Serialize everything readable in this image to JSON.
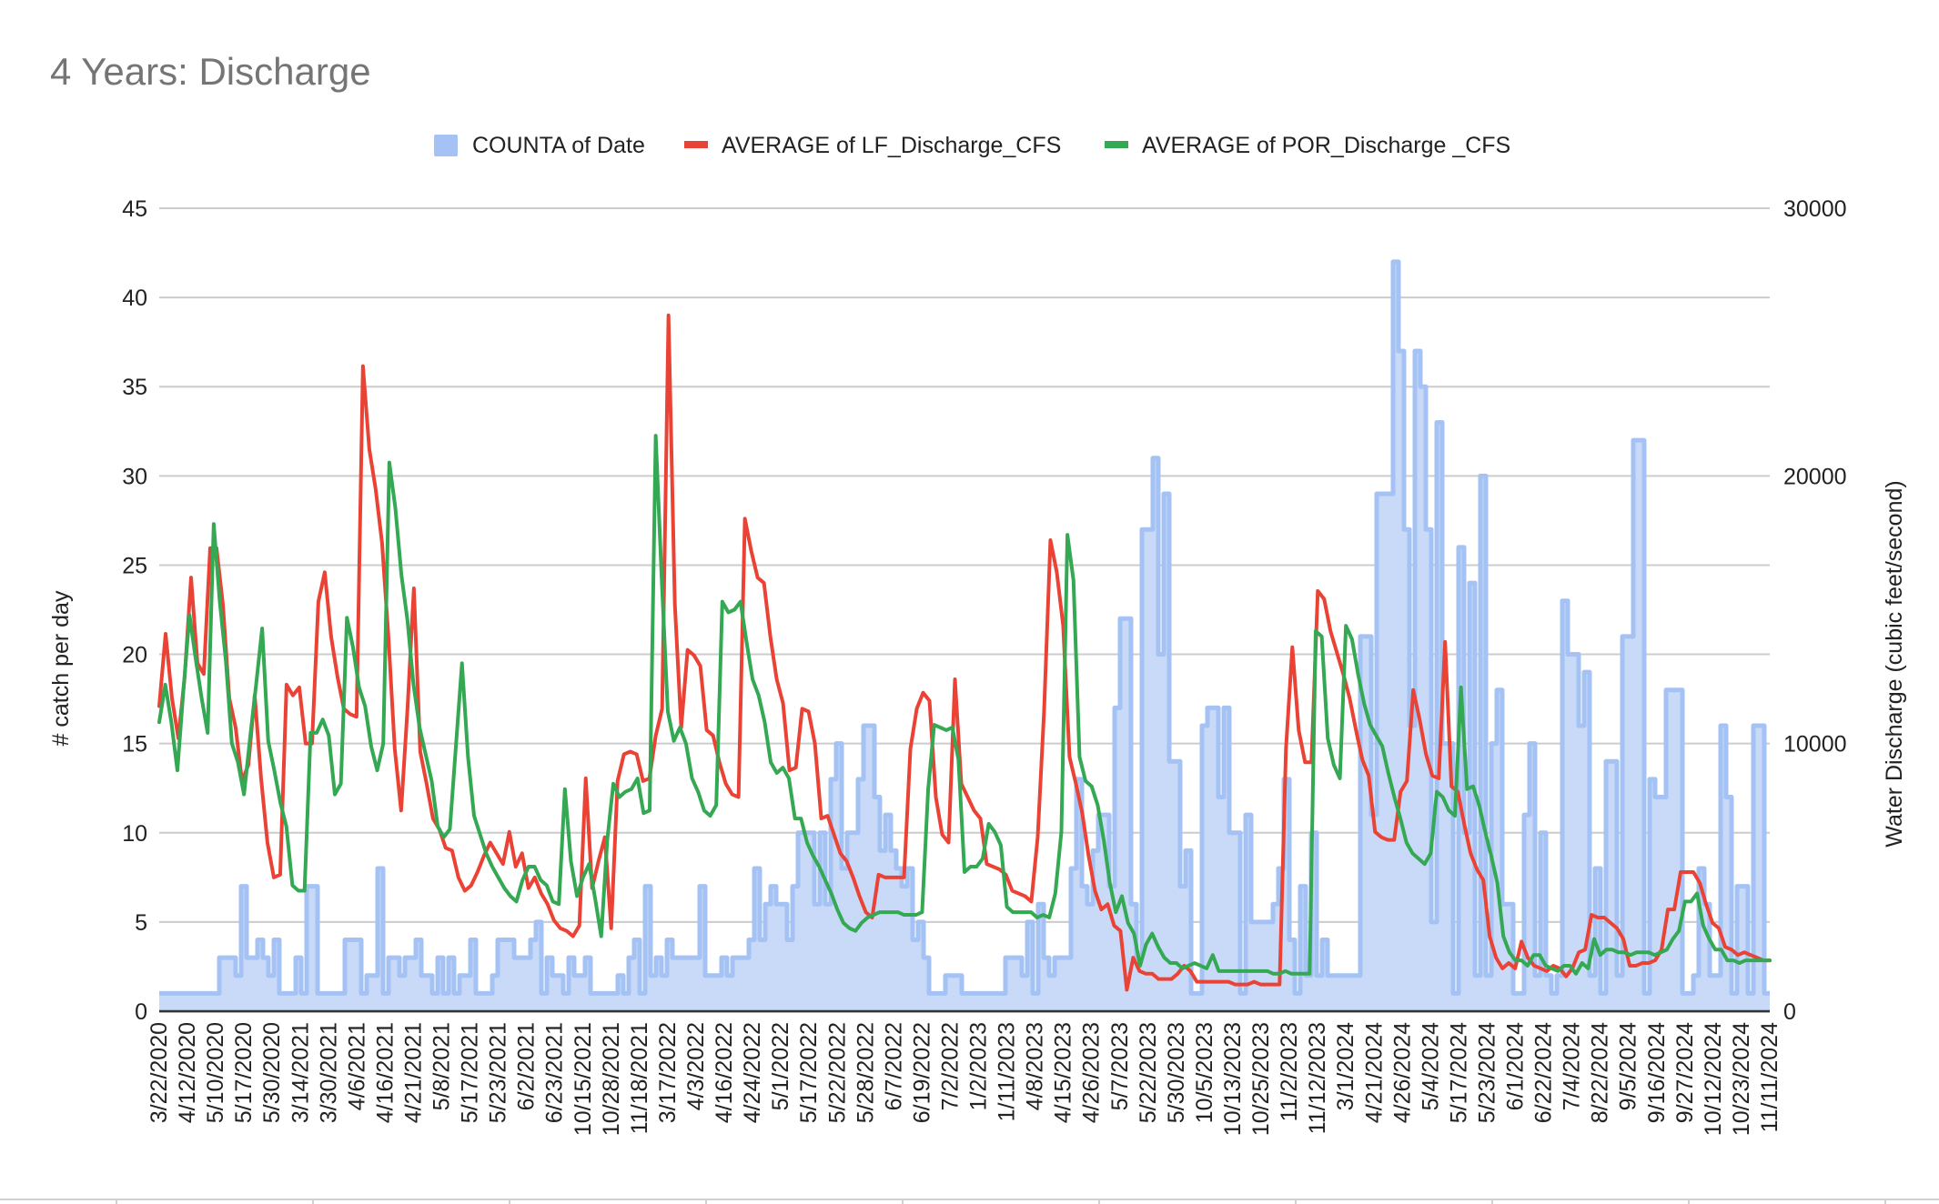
{
  "chart_data": {
    "type": "area",
    "title": "4 Years: Discharge",
    "ylabel_left": "# catch per day",
    "ylabel_right": "Water Discharge (cubic feet/second)",
    "ylim_left": [
      0,
      45
    ],
    "ylim_right": [
      0,
      30000
    ],
    "yticks_left": [
      "0",
      "5",
      "10",
      "15",
      "20",
      "25",
      "30",
      "35",
      "40",
      "45"
    ],
    "yticks_right": [
      "0",
      "10000",
      "20000",
      "30000"
    ],
    "grid": true,
    "legend_position": "top",
    "x_tick_labels": [
      "3/22/2020",
      "4/12/2020",
      "5/10/2020",
      "5/17/2020",
      "5/30/2020",
      "3/14/2021",
      "3/30/2021",
      "4/6/2021",
      "4/16/2021",
      "4/21/2021",
      "5/8/2021",
      "5/17/2021",
      "5/23/2021",
      "6/2/2021",
      "6/23/2021",
      "10/15/2021",
      "10/28/2021",
      "11/18/2021",
      "3/17/2022",
      "4/3/2022",
      "4/16/2022",
      "4/24/2022",
      "5/1/2022",
      "5/17/2022",
      "5/22/2022",
      "5/28/2022",
      "6/7/2022",
      "6/19/2022",
      "7/2/2022",
      "1/2/2023",
      "1/11/2023",
      "4/8/2023",
      "4/15/2023",
      "4/26/2023",
      "5/7/2023",
      "5/22/2023",
      "5/30/2023",
      "10/5/2023",
      "10/13/2023",
      "10/25/2023",
      "11/2/2023",
      "11/12/2023",
      "3/1/2024",
      "4/21/2024",
      "4/26/2024",
      "5/4/2024",
      "5/17/2024",
      "5/23/2024",
      "6/1/2024",
      "6/22/2024",
      "7/4/2024",
      "8/22/2024",
      "9/5/2024",
      "9/16/2024",
      "9/27/2024",
      "10/12/2024",
      "10/23/2024",
      "11/11/2024"
    ],
    "series": [
      {
        "name": "COUNTA of Date",
        "type": "stepped-area",
        "axis": "left",
        "color": "#a4c2f4",
        "fill_color": "#c9daf8",
        "values": [
          1,
          1,
          1,
          1,
          1,
          1,
          1,
          1,
          1,
          1,
          1,
          3,
          3,
          3,
          2,
          7,
          3,
          3,
          4,
          3,
          2,
          4,
          1,
          1,
          1,
          3,
          1,
          7,
          7,
          1,
          1,
          1,
          1,
          1,
          4,
          4,
          4,
          1,
          2,
          2,
          8,
          1,
          3,
          3,
          2,
          3,
          3,
          4,
          2,
          2,
          1,
          3,
          1,
          3,
          1,
          2,
          2,
          4,
          1,
          1,
          1,
          2,
          4,
          4,
          4,
          3,
          3,
          3,
          4,
          5,
          1,
          3,
          2,
          2,
          1,
          3,
          2,
          2,
          3,
          1,
          1,
          1,
          1,
          1,
          2,
          1,
          3,
          4,
          1,
          7,
          2,
          3,
          2,
          4,
          3,
          3,
          3,
          3,
          3,
          7,
          2,
          2,
          2,
          3,
          2,
          3,
          3,
          3,
          4,
          8,
          4,
          6,
          7,
          6,
          6,
          4,
          7,
          10,
          10,
          10,
          6,
          10,
          6,
          13,
          15,
          8,
          10,
          10,
          13,
          16,
          16,
          12,
          9,
          11,
          9,
          8,
          7,
          8,
          4,
          5,
          3,
          1,
          1,
          1,
          2,
          2,
          2,
          1,
          1,
          1,
          1,
          1,
          1,
          1,
          1,
          3,
          3,
          3,
          2,
          5,
          1,
          6,
          3,
          2,
          3,
          3,
          3,
          8,
          13,
          7,
          6,
          9,
          11,
          11,
          7,
          17,
          22,
          22,
          6,
          3,
          27,
          27,
          31,
          20,
          29,
          14,
          14,
          7,
          9,
          1,
          1,
          16,
          17,
          17,
          12,
          17,
          10,
          10,
          1,
          11,
          5,
          5,
          5,
          5,
          6,
          8,
          13,
          4,
          1,
          7,
          2,
          10,
          2,
          4,
          2,
          2,
          2,
          2,
          2,
          2,
          21,
          21,
          11,
          29,
          29,
          29,
          42,
          37,
          27,
          16,
          37,
          35,
          27,
          5,
          33,
          15,
          15,
          1,
          26,
          10,
          24,
          2,
          30,
          2,
          15,
          18,
          6,
          6,
          1,
          1,
          11,
          15,
          2,
          10,
          2,
          1,
          2,
          23,
          20,
          20,
          16,
          19,
          2,
          8,
          1,
          14,
          14,
          2,
          21,
          21,
          32,
          32,
          1,
          13,
          12,
          12,
          18,
          18,
          18,
          1,
          1,
          2,
          8,
          6,
          2,
          2,
          16,
          12,
          1,
          7,
          7,
          1,
          16,
          16,
          1
        ]
      },
      {
        "name": "AVERAGE of LF_Discharge_CFS",
        "type": "line",
        "axis": "right",
        "color": "#ea4335",
        "values": [
          11400,
          14100,
          11700,
          10200,
          12500,
          16200,
          13000,
          12600,
          17300,
          17300,
          15200,
          11700,
          10600,
          8600,
          9200,
          11800,
          8700,
          6300,
          5000,
          5100,
          12200,
          11800,
          12100,
          10000,
          10000,
          15300,
          16400,
          14000,
          12500,
          11300,
          11100,
          11000,
          24100,
          21000,
          19500,
          17500,
          14000,
          9800,
          7500,
          11300,
          15800,
          9700,
          8500,
          7200,
          6800,
          6100,
          6000,
          5000,
          4500,
          4700,
          5200,
          5800,
          6300,
          5900,
          5500,
          6700,
          5400,
          5900,
          4600,
          5000,
          4400,
          4000,
          3400,
          3100,
          3000,
          2800,
          3200,
          8700,
          4600,
          5600,
          6500,
          3100,
          8600,
          9600,
          9700,
          9600,
          8600,
          8700,
          10300,
          11300,
          26000,
          15200,
          10600,
          13500,
          13300,
          12900,
          10500,
          10300,
          9300,
          8500,
          8100,
          8000,
          18400,
          17200,
          16200,
          16000,
          14000,
          12400,
          11500,
          9000,
          9100,
          11300,
          11200,
          10000,
          7200,
          7300,
          6600,
          5900,
          5600,
          5000,
          4300,
          3700,
          3500,
          5100,
          5000,
          5000,
          5000,
          5000,
          9800,
          11300,
          11900,
          11600,
          8000,
          6600,
          6300,
          12400,
          8500,
          8000,
          7500,
          7200,
          5500,
          5400,
          5300,
          5100,
          4500,
          4400,
          4300,
          4100,
          6500,
          11200,
          17600,
          16400,
          14400,
          9500,
          8500,
          7400,
          5800,
          4500,
          3800,
          4000,
          3200,
          3000,
          800,
          2000,
          1500,
          1400,
          1400,
          1200,
          1200,
          1200,
          1400,
          1700,
          1500,
          1100,
          1100,
          1100,
          1100,
          1100,
          1100,
          1000,
          1000,
          1000,
          1100,
          1000,
          1000,
          1000,
          1000,
          9800,
          13600,
          10500,
          9300,
          9300,
          15700,
          15400,
          14200,
          13400,
          12600,
          11700,
          10500,
          9400,
          8800,
          6700,
          6500,
          6400,
          6400,
          8200,
          8600,
          12000,
          10900,
          9600,
          8800,
          8700,
          13800,
          8400,
          8200,
          7000,
          5900,
          5300,
          4900,
          2800,
          2000,
          1600,
          1800,
          1600,
          2600,
          2000,
          1700,
          1600,
          1500,
          1700,
          1600,
          1300,
          1600,
          2200,
          2300,
          3600,
          3500,
          3500,
          3300,
          3100,
          2700,
          1700,
          1700,
          1800,
          1800,
          1900,
          2300,
          3800,
          3800,
          5200,
          5200,
          5200,
          4800,
          4000,
          3300,
          3100,
          2400,
          2300,
          2100,
          2200,
          2100,
          2000,
          1900,
          1900
        ]
      },
      {
        "name": "AVERAGE of POR_Discharge _CFS",
        "type": "line",
        "axis": "right",
        "color": "#34a853",
        "values": [
          10800,
          12200,
          10800,
          9000,
          12000,
          14800,
          13200,
          11700,
          10400,
          18200,
          15300,
          13100,
          10000,
          9300,
          8100,
          10200,
          12200,
          14300,
          10100,
          9000,
          7800,
          6900,
          4700,
          4500,
          4500,
          10400,
          10400,
          10900,
          10300,
          8100,
          8500,
          14700,
          13600,
          12100,
          11400,
          9900,
          9000,
          10000,
          20500,
          18800,
          16300,
          14600,
          12200,
          10600,
          9600,
          8600,
          6900,
          6500,
          6800,
          9900,
          13000,
          9500,
          7300,
          6600,
          5900,
          5400,
          5000,
          4600,
          4300,
          4100,
          4900,
          5400,
          5400,
          4900,
          4700,
          4100,
          4000,
          8300,
          5600,
          4300,
          5000,
          5500,
          4200,
          2800,
          6400,
          8500,
          8000,
          8200,
          8300,
          8700,
          7400,
          7500,
          21500,
          16100,
          11200,
          10100,
          10600,
          10000,
          8700,
          8200,
          7500,
          7300,
          7700,
          15300,
          14900,
          15000,
          15300,
          13800,
          12400,
          11800,
          10800,
          9300,
          8900,
          9100,
          8700,
          7200,
          7200,
          6300,
          5800,
          5400,
          4900,
          4400,
          3800,
          3300,
          3100,
          3000,
          3300,
          3500,
          3600,
          3700,
          3700,
          3700,
          3700,
          3600,
          3600,
          3600,
          3700,
          8300,
          10700,
          10600,
          10500,
          10600,
          9400,
          5200,
          5400,
          5400,
          5700,
          7000,
          6700,
          6200,
          3900,
          3700,
          3700,
          3700,
          3700,
          3500,
          3600,
          3500,
          4400,
          6700,
          17800,
          16100,
          9500,
          8600,
          8400,
          7700,
          6400,
          4800,
          3700,
          4300,
          3300,
          2900,
          1700,
          2500,
          2900,
          2400,
          2000,
          1800,
          1800,
          1600,
          1700,
          1800,
          1700,
          1600,
          2100,
          1500,
          1500,
          1500,
          1500,
          1500,
          1500,
          1500,
          1500,
          1500,
          1400,
          1400,
          1500,
          1400,
          1400,
          1400,
          1400,
          14200,
          14000,
          10200,
          9200,
          8700,
          14400,
          13900,
          12600,
          11500,
          10700,
          10300,
          9900,
          8900,
          8000,
          7200,
          6300,
          5900,
          5700,
          5500,
          5900,
          8200,
          8000,
          7500,
          7300,
          12100,
          8300,
          8400,
          7700,
          6700,
          5800,
          4800,
          2800,
          2200,
          1900,
          1900,
          1700,
          2100,
          2100,
          1700,
          1600,
          1500,
          1700,
          1700,
          1400,
          1800,
          1600,
          2700,
          2100,
          2300,
          2300,
          2200,
          2200,
          2100,
          2200,
          2200,
          2200,
          2100,
          2200,
          2300,
          2700,
          3000,
          4100,
          4100,
          4400,
          3200,
          2700,
          2300,
          2300,
          1900,
          1900,
          1800,
          1900,
          1900,
          1900,
          1900,
          1900
        ]
      }
    ]
  }
}
